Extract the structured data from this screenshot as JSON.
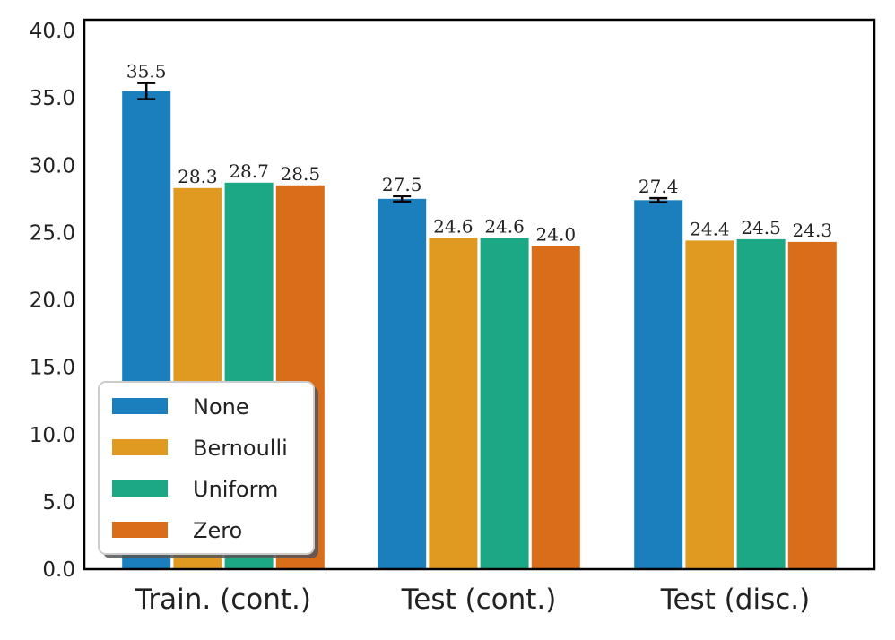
{
  "chart_data": {
    "type": "bar",
    "title": "",
    "xlabel": "",
    "ylabel": "",
    "ylim": [
      0,
      40.8
    ],
    "y_ticks": [
      "0.0",
      "5.0",
      "10.0",
      "15.0",
      "20.0",
      "25.0",
      "30.0",
      "35.0",
      "40.0"
    ],
    "categories": [
      "Train. (cont.)",
      "Test (cont.)",
      "Test (disc.)"
    ],
    "series": [
      {
        "name": "None",
        "color": "#1a7fbc",
        "values": [
          35.5,
          27.5,
          27.4
        ],
        "value_labels": [
          "35.5",
          "27.5",
          "27.4"
        ],
        "errors": [
          0.6,
          0.2,
          0.15
        ]
      },
      {
        "name": "Bernoulli",
        "color": "#e09a22",
        "values": [
          28.3,
          24.6,
          24.4
        ],
        "value_labels": [
          "28.3",
          "24.6",
          "24.4"
        ]
      },
      {
        "name": "Uniform",
        "color": "#1ca884",
        "values": [
          28.7,
          24.6,
          24.5
        ],
        "value_labels": [
          "28.7",
          "24.6",
          "24.5"
        ]
      },
      {
        "name": "Zero",
        "color": "#d96d1a",
        "values": [
          28.5,
          24.0,
          24.3
        ],
        "value_labels": [
          "28.5",
          "24.0",
          "24.3"
        ]
      }
    ],
    "legend": {
      "placement": "lower-left"
    },
    "grid": false
  }
}
